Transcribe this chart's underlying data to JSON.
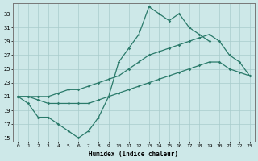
{
  "xlabel": "Humidex (Indice chaleur)",
  "background_color": "#cde8e8",
  "grid_color": "#a8cccc",
  "line_color": "#2a7a6a",
  "xlim": [
    -0.5,
    23.5
  ],
  "ylim": [
    14.5,
    34.5
  ],
  "xticks": [
    0,
    1,
    2,
    3,
    4,
    5,
    6,
    7,
    8,
    9,
    10,
    11,
    12,
    13,
    14,
    15,
    16,
    17,
    18,
    19,
    20,
    21,
    22,
    23
  ],
  "yticks": [
    15,
    17,
    19,
    21,
    23,
    25,
    27,
    29,
    31,
    33
  ],
  "curve1_x": [
    0,
    1,
    2,
    3,
    4,
    5,
    6,
    7,
    8,
    9,
    10,
    11,
    12,
    13,
    14,
    15,
    16,
    17,
    18,
    19
  ],
  "curve1_y": [
    21,
    20,
    18,
    18,
    17,
    16,
    15,
    16,
    18,
    21,
    26,
    28,
    30,
    34,
    33,
    32,
    33,
    31,
    30,
    29
  ],
  "curve2_x": [
    0,
    1,
    2,
    3,
    4,
    5,
    6,
    7,
    8,
    9,
    10,
    11,
    12,
    13,
    14,
    15,
    16,
    17,
    18,
    19,
    20,
    21,
    22,
    23
  ],
  "curve2_y": [
    21,
    21,
    21,
    21,
    21.5,
    22,
    22,
    22.5,
    23,
    23.5,
    24,
    25,
    26,
    27,
    27.5,
    28,
    28.5,
    29,
    29.5,
    30,
    29,
    27,
    26,
    24
  ],
  "curve3_x": [
    0,
    1,
    2,
    3,
    4,
    5,
    6,
    7,
    8,
    9,
    10,
    11,
    12,
    13,
    14,
    15,
    16,
    17,
    18,
    19,
    20,
    21,
    22,
    23
  ],
  "curve3_y": [
    21,
    21,
    20.5,
    20,
    20,
    20,
    20,
    20,
    20.5,
    21,
    21.5,
    22,
    22.5,
    23,
    23.5,
    24,
    24.5,
    25,
    25.5,
    26,
    26,
    25,
    24.5,
    24
  ]
}
